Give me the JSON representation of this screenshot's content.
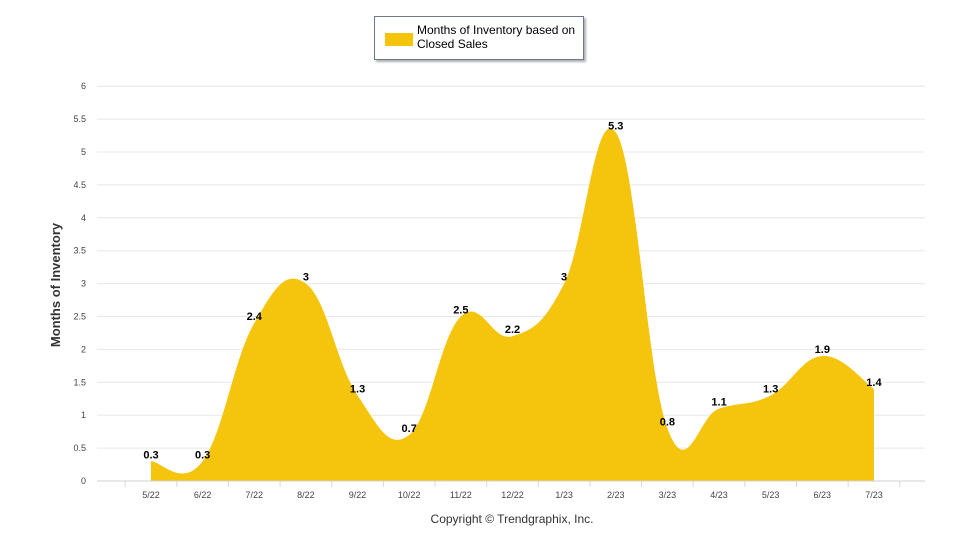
{
  "chart_data": {
    "type": "area",
    "categories": [
      "5/22",
      "6/22",
      "7/22",
      "8/22",
      "9/22",
      "10/22",
      "11/22",
      "12/22",
      "1/23",
      "2/23",
      "3/23",
      "4/23",
      "5/23",
      "6/23",
      "7/23"
    ],
    "series": [
      {
        "name": "Months of Inventory based on Closed Sales",
        "values": [
          0.3,
          0.3,
          2.4,
          3,
          1.3,
          0.7,
          2.5,
          2.2,
          3,
          5.3,
          0.8,
          1.1,
          1.3,
          1.9,
          1.4
        ],
        "color": "#F5C40C"
      }
    ],
    "ylabel": "Months of Inventory",
    "ylim": [
      0,
      6
    ],
    "yticks": [
      "0",
      "0.5",
      "1",
      "1.5",
      "2",
      "2.5",
      "3",
      "3.5",
      "4",
      "4.5",
      "5",
      "5.5",
      "6"
    ],
    "grid": true,
    "legend_position": "top-center"
  },
  "legend": {
    "label": "Months of Inventory based on Closed Sales"
  },
  "footer": {
    "copyright": "Copyright © Trendgraphix, Inc."
  }
}
